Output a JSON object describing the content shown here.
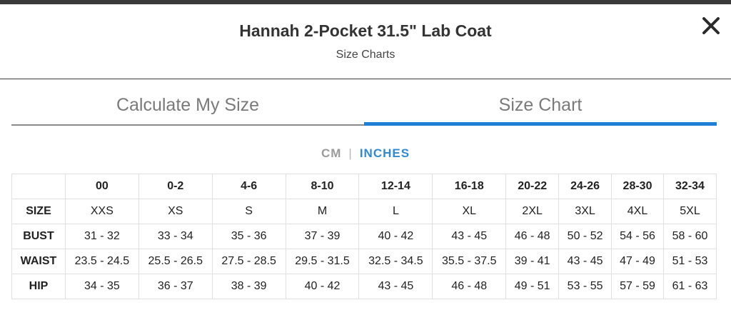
{
  "header": {
    "title": "Hannah 2-Pocket 31.5\" Lab Coat",
    "subtitle": "Size Charts",
    "close_icon": "close-icon"
  },
  "tabs": [
    {
      "label": "Calculate My Size",
      "active": false
    },
    {
      "label": "Size Chart",
      "active": true
    }
  ],
  "units": {
    "cm": "CM",
    "separator": "|",
    "inches": "INCHES",
    "selected": "INCHES"
  },
  "colors": {
    "accent": "#1f7fd4",
    "inactive_tab": "#7a7a7a",
    "top_strip": "#3a3a3a"
  },
  "table": {
    "columns": [
      "",
      "00",
      "0-2",
      "4-6",
      "8-10",
      "12-14",
      "16-18",
      "20-22",
      "24-26",
      "28-30",
      "32-34"
    ],
    "rows": [
      {
        "label": "SIZE",
        "cells": [
          "XXS",
          "XS",
          "S",
          "M",
          "L",
          "XL",
          "2XL",
          "3XL",
          "4XL",
          "5XL"
        ]
      },
      {
        "label": "BUST",
        "cells": [
          "31 - 32",
          "33 - 34",
          "35 - 36",
          "37 - 39",
          "40 - 42",
          "43 - 45",
          "46 - 48",
          "50 - 52",
          "54 - 56",
          "58 - 60"
        ]
      },
      {
        "label": "WAIST",
        "cells": [
          "23.5 - 24.5",
          "25.5 - 26.5",
          "27.5 - 28.5",
          "29.5 - 31.5",
          "32.5 - 34.5",
          "35.5 - 37.5",
          "39 - 41",
          "43 - 45",
          "47 - 49",
          "51 - 53"
        ]
      },
      {
        "label": "HIP",
        "cells": [
          "34 - 35",
          "36 - 37",
          "38 - 39",
          "40 - 42",
          "43 - 45",
          "46 - 48",
          "49 - 51",
          "53 - 55",
          "57 - 59",
          "61 - 63"
        ]
      }
    ]
  }
}
